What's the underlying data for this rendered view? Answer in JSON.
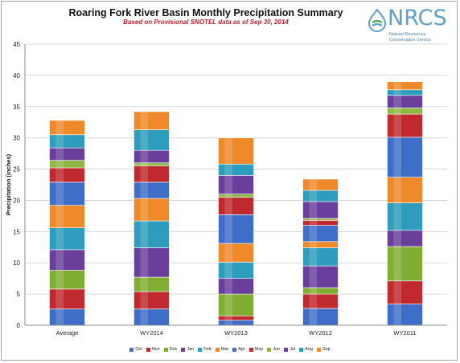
{
  "chart_data": {
    "type": "bar",
    "stacked": true,
    "title": "Roaring Fork River Basin Monthly Precipitation  Summary",
    "subtitle": "Based on Provisional SNOTEL data as of Sep 30, 2014",
    "ylabel": "Precipitation (inches)",
    "xlabel": "",
    "ylim": [
      0,
      45
    ],
    "yticks": [
      0,
      5,
      10,
      15,
      20,
      25,
      30,
      35,
      40,
      45
    ],
    "grid": true,
    "legend_position": "bottom",
    "categories": [
      "Average",
      "WY2014",
      "WY2013",
      "WY2012",
      "WY2011"
    ],
    "series": [
      {
        "name": "Oct",
        "color": "#3f6ec8",
        "values": [
          2.6,
          2.6,
          0.8,
          2.7,
          3.4
        ]
      },
      {
        "name": "Nov",
        "color": "#c0292e",
        "values": [
          3.2,
          2.8,
          0.7,
          2.3,
          3.7
        ]
      },
      {
        "name": "Dec",
        "color": "#7fae32",
        "values": [
          3.0,
          2.3,
          3.5,
          1.0,
          5.5
        ]
      },
      {
        "name": "Jan",
        "color": "#6a3f9c",
        "values": [
          3.3,
          4.7,
          2.5,
          3.5,
          2.6
        ]
      },
      {
        "name": "Feb",
        "color": "#2e9cbc",
        "values": [
          3.5,
          4.3,
          2.6,
          2.9,
          4.4
        ]
      },
      {
        "name": "Mar",
        "color": "#ee8a2a",
        "values": [
          3.6,
          3.6,
          3.0,
          1.0,
          4.1
        ]
      },
      {
        "name": "Apr",
        "color": "#3f6ec8",
        "values": [
          3.7,
          2.6,
          4.6,
          2.6,
          6.4
        ]
      },
      {
        "name": "May",
        "color": "#c0292e",
        "values": [
          2.3,
          2.6,
          2.8,
          0.8,
          3.7
        ]
      },
      {
        "name": "Jun",
        "color": "#8db844",
        "values": [
          1.2,
          0.5,
          0.5,
          0.3,
          1.0
        ]
      },
      {
        "name": "Jul",
        "color": "#6a3f9c",
        "values": [
          2.0,
          2.0,
          3.0,
          2.7,
          2.0
        ]
      },
      {
        "name": "Aug",
        "color": "#2e9cbc",
        "values": [
          2.1,
          3.3,
          1.8,
          1.8,
          0.9
        ]
      },
      {
        "name": "Sep",
        "color": "#ee8a2a",
        "values": [
          2.3,
          2.9,
          4.2,
          1.8,
          1.3
        ]
      }
    ]
  },
  "logo": {
    "word": "NRCS",
    "line1": "Natural Resources",
    "line2": "Conservation Service"
  }
}
